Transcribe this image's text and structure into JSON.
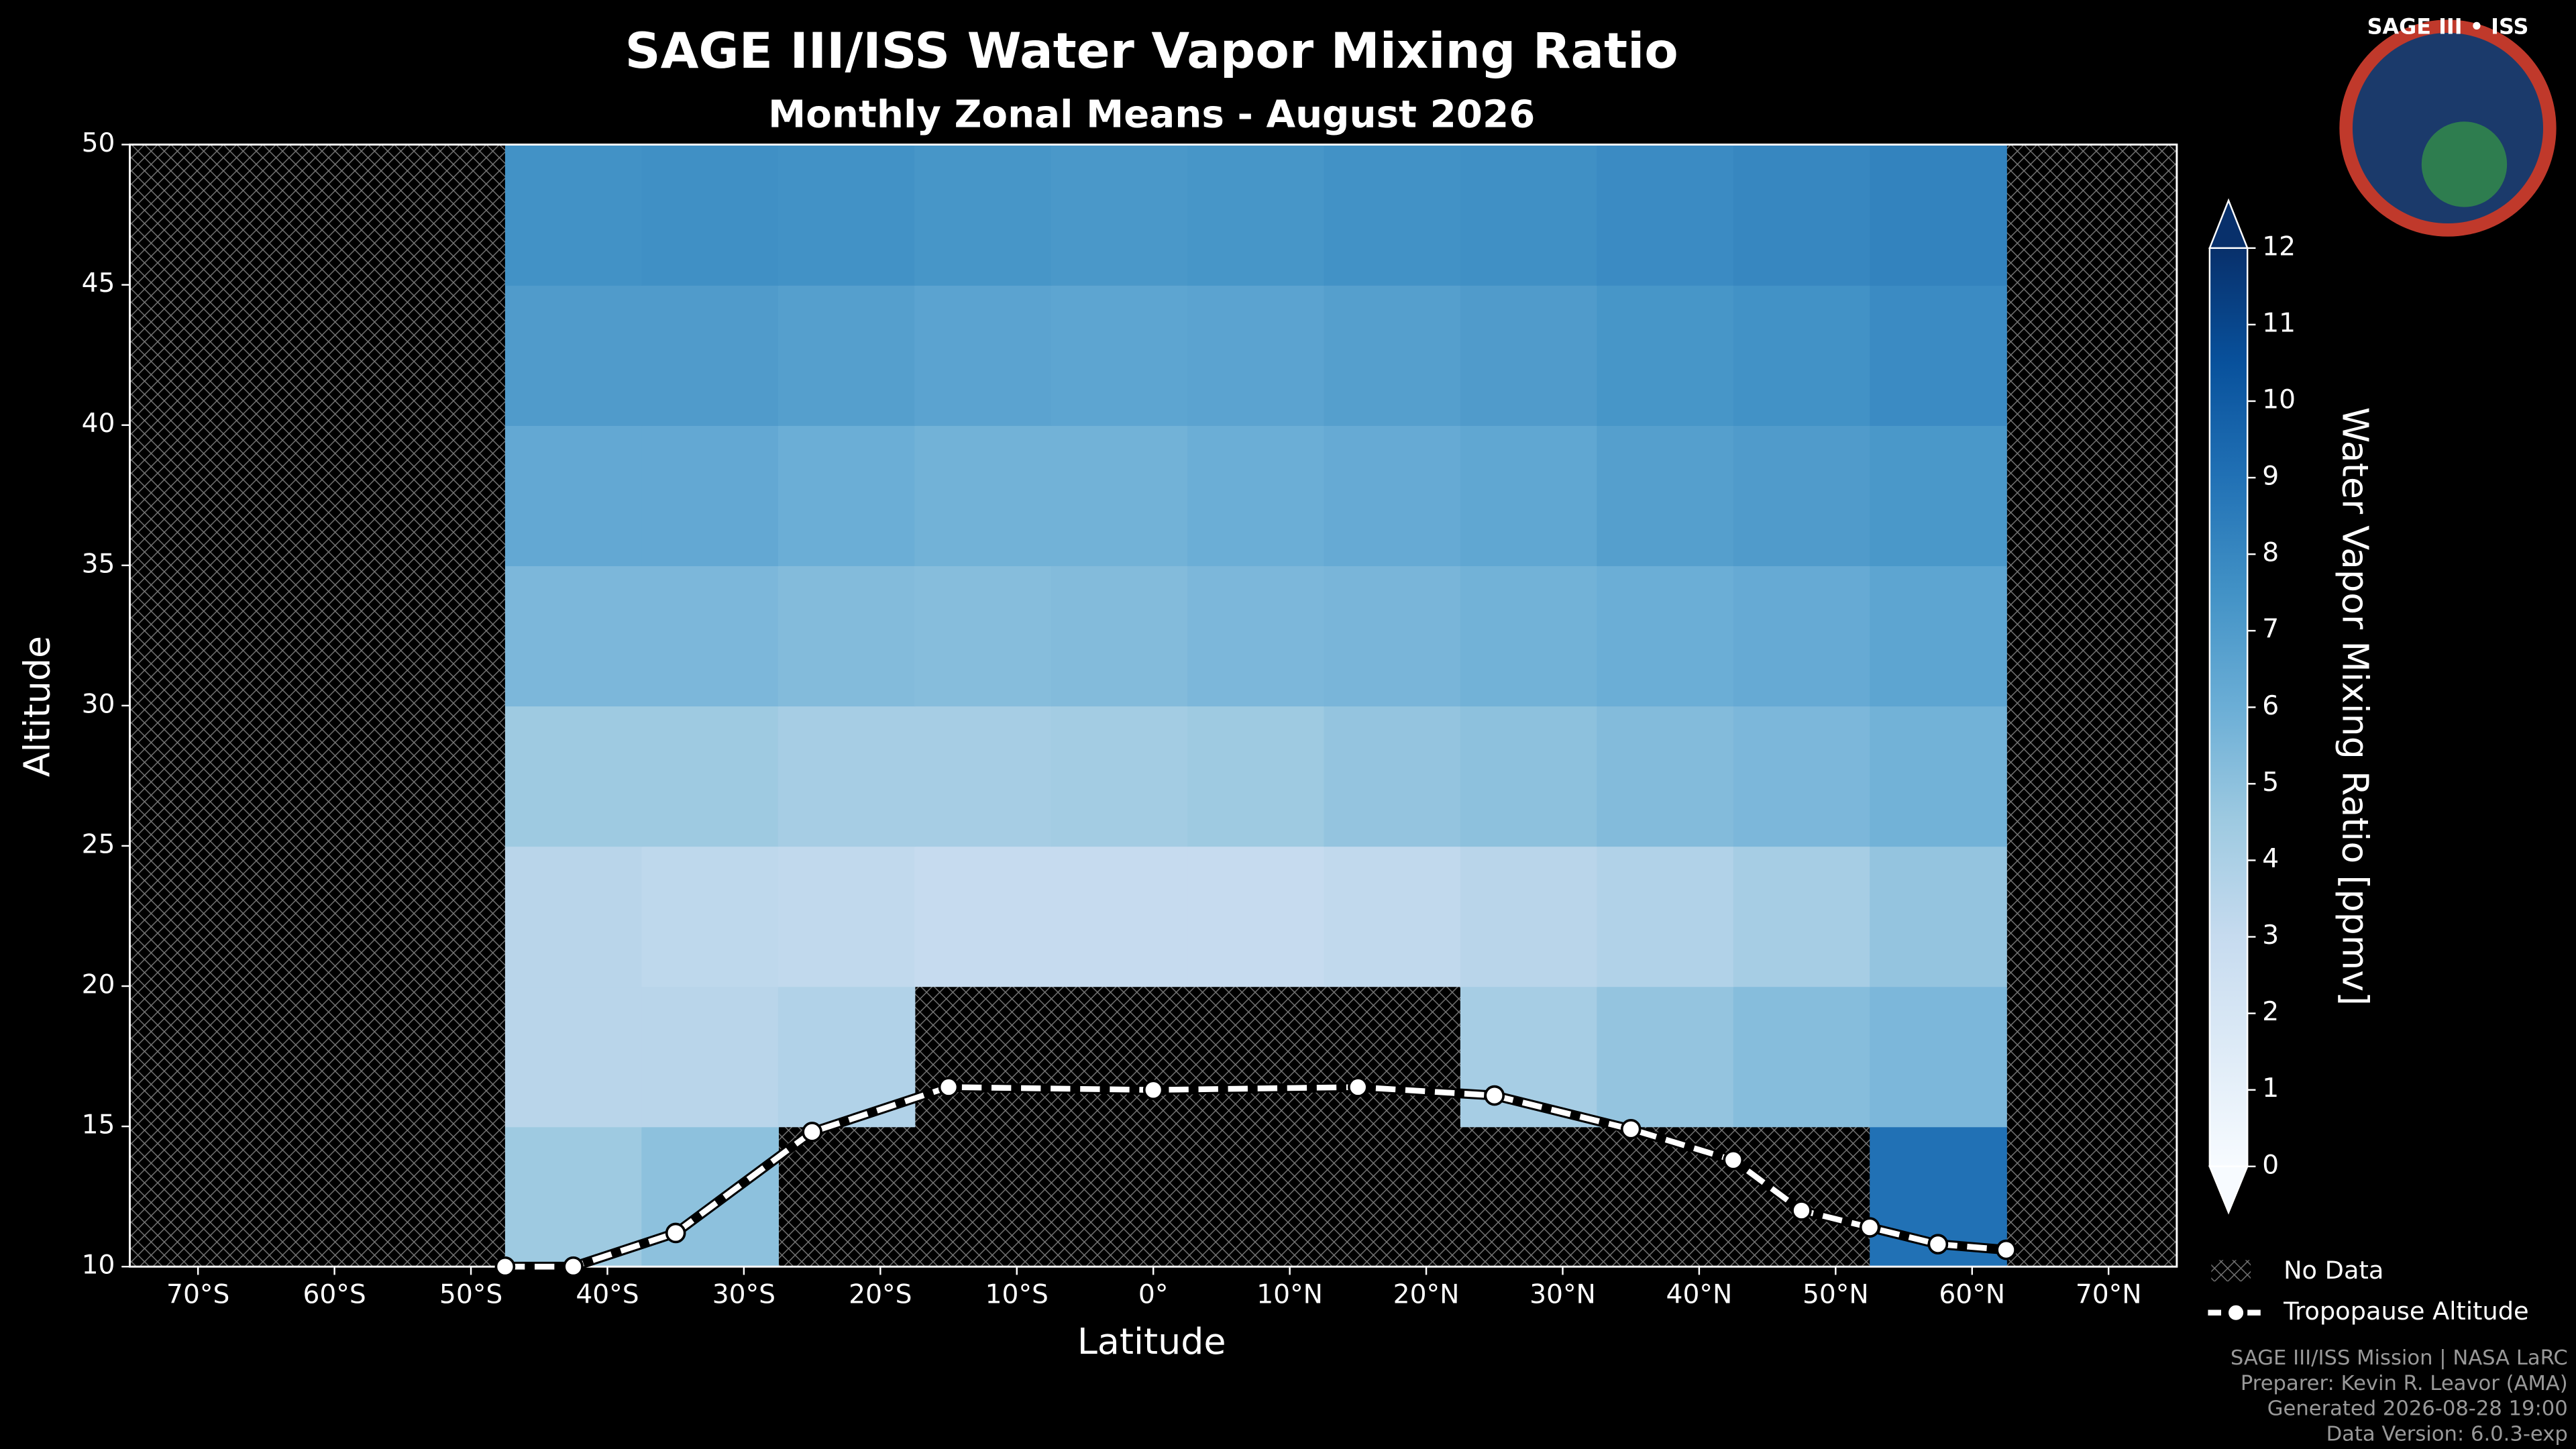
{
  "chart_data": {
    "type": "heatmap",
    "title": "SAGE III/ISS Water Vapor Mixing Ratio",
    "subtitle": "Monthly Zonal Means - August 2026",
    "xlabel": "Latitude",
    "ylabel": "Altitude",
    "xlim": [
      -75,
      75
    ],
    "ylim": [
      10,
      50
    ],
    "xticks": [
      {
        "value": -70,
        "label": "70°S"
      },
      {
        "value": -60,
        "label": "60°S"
      },
      {
        "value": -50,
        "label": "50°S"
      },
      {
        "value": -40,
        "label": "40°S"
      },
      {
        "value": -30,
        "label": "30°S"
      },
      {
        "value": -20,
        "label": "20°S"
      },
      {
        "value": -10,
        "label": "10°S"
      },
      {
        "value": 0,
        "label": "0°"
      },
      {
        "value": 10,
        "label": "10°N"
      },
      {
        "value": 20,
        "label": "20°N"
      },
      {
        "value": 30,
        "label": "30°N"
      },
      {
        "value": 40,
        "label": "40°N"
      },
      {
        "value": 50,
        "label": "50°N"
      },
      {
        "value": 60,
        "label": "60°N"
      },
      {
        "value": 70,
        "label": "70°N"
      }
    ],
    "yticks": [
      10,
      15,
      20,
      25,
      30,
      35,
      40,
      45,
      50
    ],
    "lat_edges": [
      -47.5,
      -37.5,
      -27.5,
      -17.5,
      -7.5,
      2.5,
      12.5,
      22.5,
      32.5,
      42.5,
      52.5,
      62.5
    ],
    "alt_edges": [
      10,
      15,
      20,
      25,
      30,
      35,
      40,
      45,
      50
    ],
    "z": [
      [
        4.5,
        5,
        null,
        null,
        null,
        null,
        null,
        null,
        null,
        null,
        9
      ],
      [
        3.5,
        3.5,
        3.8,
        null,
        null,
        null,
        null,
        4.2,
        4.8,
        5.2,
        5.5
      ],
      [
        3.5,
        3.3,
        3.2,
        3,
        3,
        3,
        3.2,
        3.5,
        3.8,
        4.2,
        4.8
      ],
      [
        4.5,
        4.5,
        4.2,
        4.2,
        4.3,
        4.5,
        4.8,
        5,
        5.3,
        5.5,
        5.8
      ],
      [
        5.5,
        5.5,
        5.3,
        5.2,
        5.3,
        5.5,
        5.6,
        5.8,
        6,
        6.2,
        6.5
      ],
      [
        6.3,
        6.3,
        6,
        5.8,
        5.8,
        6,
        6.2,
        6.4,
        6.8,
        7,
        7.2
      ],
      [
        7,
        7,
        6.8,
        6.6,
        6.5,
        6.6,
        6.8,
        7,
        7.3,
        7.5,
        7.8
      ],
      [
        7.5,
        7.6,
        7.5,
        7.3,
        7.2,
        7.3,
        7.5,
        7.6,
        7.8,
        8,
        8.2
      ]
    ],
    "colormap": "Blues",
    "colorbar_label": "Water Vapor Mixing Ratio [ppmv]",
    "clim": [
      0,
      12
    ],
    "cticks": [
      0,
      1,
      2,
      3,
      4,
      5,
      6,
      7,
      8,
      9,
      10,
      11,
      12
    ],
    "series": [
      {
        "name": "Tropopause Altitude",
        "color": "#ffffff",
        "x": [
          -47.5,
          -42.5,
          -35,
          -25,
          -15,
          0,
          15,
          25,
          35,
          42.5,
          47.5,
          52.5,
          57.5,
          62.5
        ],
        "values": [
          10,
          10,
          11.2,
          14.8,
          16.4,
          16.3,
          16.4,
          16.1,
          14.9,
          13.8,
          12,
          11.4,
          10.8,
          10.6
        ]
      }
    ],
    "no_data_label": "No Data",
    "footer": [
      "SAGE III/ISS Mission | NASA LaRC",
      "Preparer: Kevin R. Leavor (AMA)",
      "Generated 2026-08-28 19:00",
      "Data Version: 6.0.3-exp"
    ]
  },
  "logo": {
    "title": "SAGE III • ISS"
  }
}
